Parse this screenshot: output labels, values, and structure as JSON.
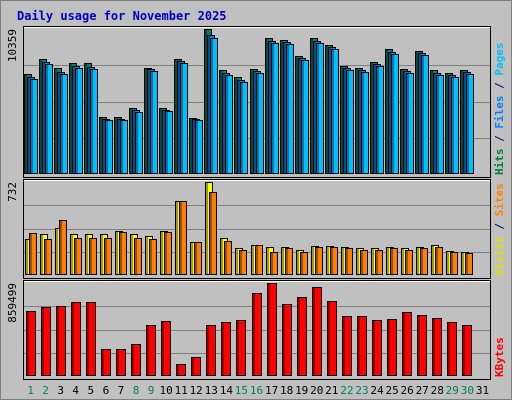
{
  "chart_data": {
    "type": "bar",
    "title": "Daily usage for November 2025",
    "days": [
      "1",
      "2",
      "3",
      "4",
      "5",
      "6",
      "7",
      "8",
      "9",
      "10",
      "11",
      "12",
      "13",
      "14",
      "15",
      "16",
      "17",
      "18",
      "19",
      "20",
      "21",
      "22",
      "23",
      "24",
      "25",
      "26",
      "27",
      "28",
      "29",
      "30",
      "31"
    ],
    "weekend_days": [
      "1",
      "2",
      "8",
      "9",
      "15",
      "16",
      "22",
      "23",
      "29",
      "30"
    ],
    "panels": [
      {
        "name": "requests",
        "max_label": "10359",
        "ymax": 10359,
        "legend": [
          {
            "text": "Hits",
            "color": "#008040"
          },
          {
            "text": "Files",
            "color": "#0080ff"
          },
          {
            "text": "Pages",
            "color": "#00c0ff"
          }
        ],
        "legend_sep": " / ",
        "legend_sep_color": "#000080",
        "series": [
          {
            "name": "Hits",
            "color": "#00805c",
            "values": [
              7150,
              8210,
              7570,
              7910,
              7910,
              4050,
              4050,
              4680,
              7570,
              4680,
              8210,
              4000,
              10359,
              7400,
              6900,
              7500,
              9700,
              9600,
              8400,
              9700,
              9200,
              7700,
              7550,
              8000,
              8900,
              7500,
              8800,
              7400,
              7200,
              7400,
              0
            ]
          },
          {
            "name": "Files",
            "color": "#0080ff",
            "values": [
              6950,
              8000,
              7300,
              7750,
              7650,
              3950,
              3950,
              4580,
              7500,
              4600,
              8100,
              3950,
              9900,
              7200,
              6700,
              7350,
              9500,
              9450,
              8300,
              9500,
              9050,
              7550,
              7450,
              7850,
              8750,
              7350,
              8650,
              7250,
              7050,
              7300,
              0
            ]
          },
          {
            "name": "Pages",
            "color": "#00c0ff",
            "values": [
              6800,
              7850,
              7150,
              7600,
              7500,
              3850,
              3850,
              4450,
              7350,
              4500,
              7950,
              3850,
              9750,
              7050,
              6550,
              7200,
              9350,
              9300,
              8150,
              9350,
              8900,
              7400,
              7300,
              7700,
              8600,
              7200,
              8500,
              7100,
              6900,
              7150,
              0
            ]
          }
        ]
      },
      {
        "name": "visits",
        "max_label": "732",
        "ymax": 732,
        "legend": [
          {
            "text": "Visits",
            "color": "#e0e000"
          },
          {
            "text": "Sites",
            "color": "#ff8000"
          }
        ],
        "legend_sep": " / ",
        "legend_sep_color": "#000080",
        "series": [
          {
            "name": "Visits",
            "color": "#ffff00",
            "values": [
              285,
              320,
              370,
              320,
              320,
              320,
              350,
              320,
              310,
              350,
              580,
              260,
              732,
              290,
              210,
              240,
              220,
              220,
              200,
              230,
              230,
              220,
              210,
              210,
              220,
              210,
              220,
              240,
              190,
              180,
              0
            ]
          },
          {
            "name": "Sites",
            "color": "#ff8000",
            "values": [
              330,
              280,
              430,
              290,
              290,
              290,
              340,
              290,
              280,
              340,
              580,
              260,
              650,
              270,
              200,
              240,
              180,
              210,
              180,
              220,
              220,
              210,
              200,
              200,
              210,
              200,
              210,
              220,
              180,
              170,
              0
            ]
          }
        ]
      },
      {
        "name": "kbytes",
        "max_label": "859499",
        "ymax": 859499,
        "legend": [
          {
            "text": "KBytes",
            "color": "#ff0000"
          }
        ],
        "legend_sep": "",
        "legend_sep_color": "#000080",
        "series": [
          {
            "name": "KBytes",
            "color": "#ff0000",
            "values": [
              600000,
              640000,
              650000,
              680000,
              680000,
              250000,
              250000,
              300000,
              470000,
              510000,
              110000,
              180000,
              470000,
              500000,
              520000,
              770000,
              859499,
              670000,
              730000,
              820000,
              690000,
              550000,
              550000,
              520000,
              530000,
              590000,
              560000,
              540000,
              500000,
              470000,
              0
            ]
          }
        ]
      }
    ]
  }
}
